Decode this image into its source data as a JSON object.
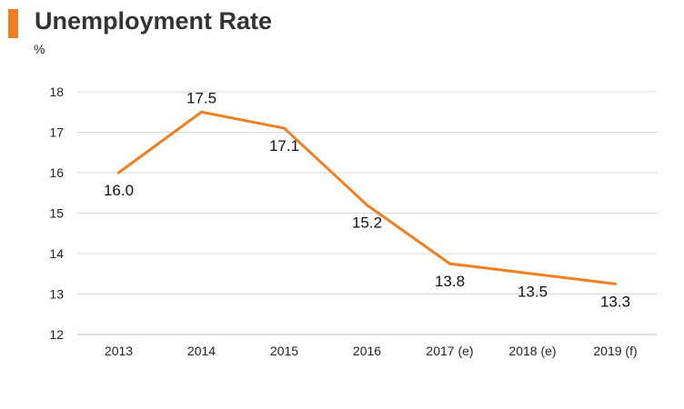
{
  "header": {
    "title": "Unemployment Rate",
    "accent_color": "#F07F21"
  },
  "chart_data": {
    "type": "line",
    "title": "Unemployment Rate",
    "ylabel": "%",
    "xlabel": "",
    "categories": [
      "2013",
      "2014",
      "2015",
      "2016",
      "2017 (e)",
      "2018 (e)",
      "2019 (f)"
    ],
    "series": [
      {
        "values": [
          16.0,
          17.5,
          17.1,
          15.2,
          13.75,
          13.5,
          13.25
        ],
        "labels": [
          "16.0",
          "17.5",
          "17.1",
          "15.2",
          "13.8",
          "13.5",
          "13.3"
        ],
        "color": "#F07F21"
      }
    ],
    "ylim": [
      12,
      18
    ],
    "yticks": [
      12,
      13,
      14,
      15,
      16,
      17,
      18
    ],
    "grid": true,
    "legend": "none"
  }
}
